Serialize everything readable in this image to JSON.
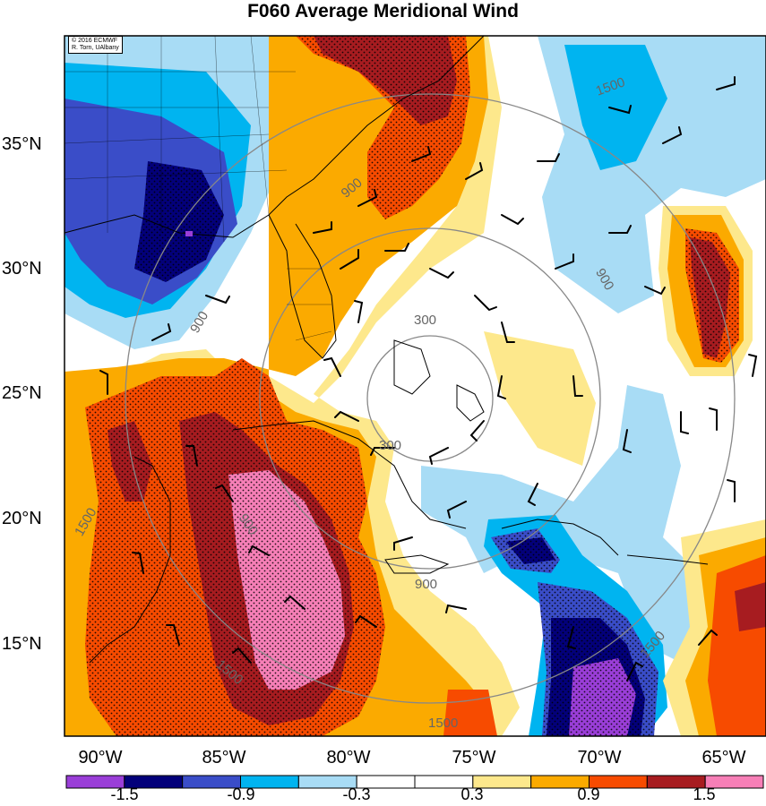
{
  "title": "F060 Average Meridional Wind",
  "credit": {
    "line1": "© 2016 ECMWF",
    "line2": "R. Torn, UAlbany"
  },
  "axes": {
    "lat_labels": [
      "35°N",
      "30°N",
      "25°N",
      "20°N",
      "15°N"
    ],
    "lon_labels": [
      "90°W",
      "85°W",
      "80°W",
      "75°W",
      "70°W",
      "65°W"
    ]
  },
  "contour_labels": [
    "300",
    "300",
    "900",
    "900",
    "900",
    "900",
    "900",
    "1500",
    "1500",
    "1500",
    "1500",
    "1500"
  ],
  "colorbar": {
    "labels": [
      "-1.5",
      "-0.9",
      "-0.3",
      "0.3",
      "0.9",
      "1.5"
    ],
    "colors": [
      "#9a3ed8",
      "#03007a",
      "#3a4dc8",
      "#00b4f0",
      "#a8dcf5",
      "#ffffff",
      "#ffffff",
      "#fde88c",
      "#fbaa00",
      "#f74b00",
      "#a71c20",
      "#f77fb7"
    ]
  },
  "palette": {
    "ocean_white": "#ffffff",
    "light_blue": "#a8dcf5",
    "cyan": "#00b4f0",
    "blue": "#3a4dc8",
    "navy": "#03007a",
    "purple": "#9a3ed8",
    "light_yellow": "#fde88c",
    "orange": "#fbaa00",
    "red_orange": "#f74b00",
    "dark_red": "#a71c20",
    "pink": "#f77fb7",
    "contour_gray": "#888888"
  }
}
